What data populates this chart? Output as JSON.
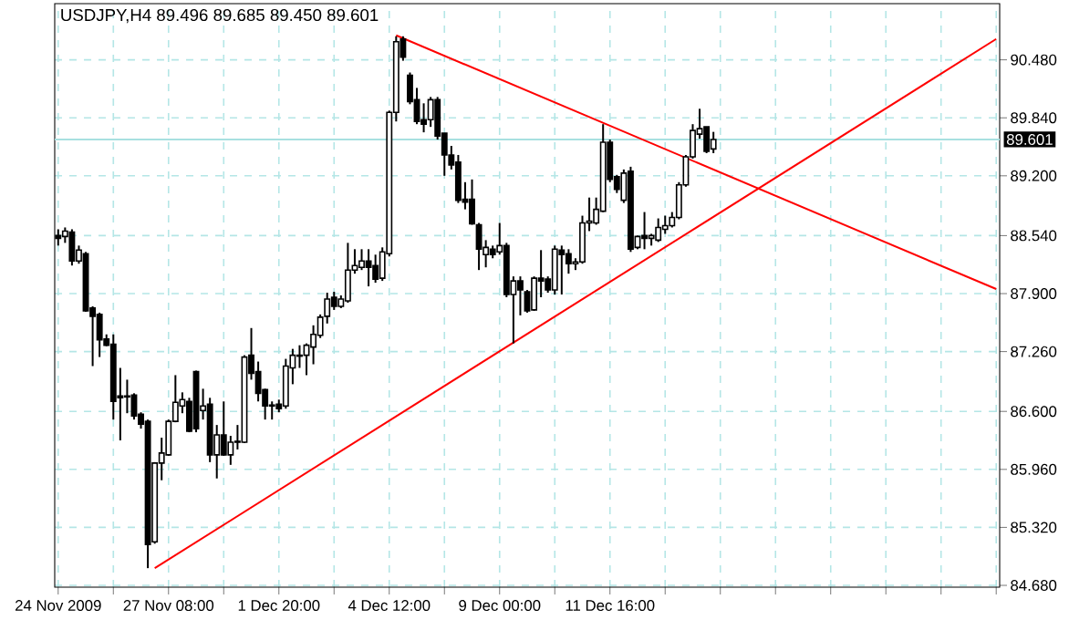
{
  "chart_data": {
    "type": "candlestick",
    "title": "USDJPY,H4 89.496 89.685 89.450 89.601",
    "categories": [
      "24 Nov 2009",
      null,
      null,
      null,
      null,
      null,
      null,
      null,
      null,
      null,
      null,
      null,
      null,
      null,
      null,
      null,
      "27 Nov 08:00",
      null,
      null,
      null,
      null,
      null,
      null,
      null,
      null,
      null,
      null,
      null,
      null,
      null,
      null,
      null,
      "1 Dec 20:00",
      null,
      null,
      null,
      null,
      null,
      null,
      null,
      null,
      null,
      null,
      null,
      null,
      null,
      null,
      null,
      "4 Dec 12:00",
      null,
      null,
      null,
      null,
      null,
      null,
      null,
      null,
      null,
      null,
      null,
      null,
      null,
      null,
      null,
      "9 Dec 00:00",
      null,
      null,
      null,
      null,
      null,
      null,
      null,
      null,
      null,
      null,
      null,
      null,
      null,
      null,
      null,
      "11 Dec 16:00",
      null,
      null,
      null,
      null,
      null,
      null,
      null,
      null,
      null,
      null,
      null,
      null,
      null,
      null,
      null,
      null,
      null,
      null,
      null,
      null,
      null,
      null,
      null,
      null,
      null,
      null,
      null,
      null,
      null,
      null,
      null,
      null,
      null,
      null,
      null,
      null,
      null,
      null,
      null,
      null,
      null,
      null,
      null,
      null,
      null,
      null,
      null,
      null,
      null,
      null,
      null,
      null,
      null,
      null,
      null,
      null
    ],
    "ohlc": [
      [
        88.54,
        88.61,
        88.43,
        88.51
      ],
      [
        88.53,
        88.63,
        88.46,
        88.59
      ],
      [
        88.58,
        88.61,
        88.21,
        88.26
      ],
      [
        88.26,
        88.43,
        88.23,
        88.38
      ],
      [
        88.34,
        88.36,
        87.7,
        87.71
      ],
      [
        87.74,
        87.76,
        87.1,
        87.65
      ],
      [
        87.67,
        87.69,
        87.2,
        87.39
      ],
      [
        87.4,
        87.45,
        87.32,
        87.33
      ],
      [
        87.34,
        87.45,
        86.51,
        86.71
      ],
      [
        86.77,
        87.08,
        86.28,
        86.75
      ],
      [
        86.77,
        86.95,
        86.58,
        86.76
      ],
      [
        86.78,
        86.8,
        86.51,
        86.55
      ],
      [
        86.57,
        86.59,
        86.41,
        86.46
      ],
      [
        86.49,
        86.51,
        84.87,
        85.13
      ],
      [
        85.16,
        86.04,
        85.14,
        86.03
      ],
      [
        86.03,
        86.31,
        85.84,
        86.14
      ],
      [
        86.12,
        86.51,
        86.11,
        86.49
      ],
      [
        86.49,
        87.0,
        86.48,
        86.7
      ],
      [
        86.66,
        86.81,
        86.58,
        86.73
      ],
      [
        86.71,
        86.75,
        86.37,
        86.38
      ],
      [
        87.04,
        87.05,
        86.37,
        86.41
      ],
      [
        86.61,
        86.85,
        86.51,
        86.66
      ],
      [
        86.68,
        86.75,
        86.04,
        86.12
      ],
      [
        86.12,
        86.45,
        85.86,
        86.34
      ],
      [
        86.34,
        86.71,
        86.11,
        86.12
      ],
      [
        86.12,
        86.33,
        86.01,
        86.26
      ],
      [
        86.26,
        86.45,
        86.18,
        86.27
      ],
      [
        86.26,
        87.22,
        86.25,
        87.2
      ],
      [
        87.22,
        87.52,
        86.95,
        87.02
      ],
      [
        87.04,
        87.15,
        86.71,
        86.8
      ],
      [
        86.84,
        86.85,
        86.51,
        86.66
      ],
      [
        86.66,
        86.71,
        86.51,
        86.67
      ],
      [
        86.68,
        86.73,
        86.59,
        86.63
      ],
      [
        86.66,
        87.18,
        86.63,
        87.1
      ],
      [
        87.08,
        87.29,
        86.9,
        87.22
      ],
      [
        87.21,
        87.33,
        87.08,
        87.22
      ],
      [
        87.22,
        87.35,
        87.0,
        87.33
      ],
      [
        87.31,
        87.55,
        87.12,
        87.45
      ],
      [
        87.44,
        87.67,
        87.41,
        87.64
      ],
      [
        87.65,
        87.91,
        87.57,
        87.84
      ],
      [
        87.86,
        87.92,
        87.72,
        87.76
      ],
      [
        87.76,
        87.88,
        87.74,
        87.84
      ],
      [
        87.82,
        88.46,
        87.8,
        88.16
      ],
      [
        88.16,
        88.39,
        88.12,
        88.21
      ],
      [
        88.19,
        88.39,
        88.16,
        88.26
      ],
      [
        88.26,
        88.39,
        87.98,
        88.19
      ],
      [
        88.21,
        88.33,
        88.02,
        88.06
      ],
      [
        88.07,
        88.41,
        88.04,
        88.36
      ],
      [
        88.34,
        89.92,
        88.31,
        89.9
      ],
      [
        89.9,
        90.74,
        89.8,
        90.68
      ],
      [
        90.71,
        90.74,
        90.47,
        90.51
      ],
      [
        90.31,
        90.34,
        89.99,
        90.02
      ],
      [
        90.04,
        90.17,
        89.77,
        89.8
      ],
      [
        89.82,
        90.0,
        89.68,
        89.77
      ],
      [
        89.82,
        90.07,
        89.74,
        90.04
      ],
      [
        90.04,
        90.07,
        89.6,
        89.64
      ],
      [
        89.67,
        89.67,
        89.2,
        89.43
      ],
      [
        89.43,
        89.53,
        89.27,
        89.32
      ],
      [
        89.35,
        89.43,
        88.9,
        88.93
      ],
      [
        88.94,
        89.13,
        88.83,
        88.91
      ],
      [
        88.94,
        89.16,
        88.66,
        88.67
      ],
      [
        88.66,
        88.68,
        88.16,
        88.39
      ],
      [
        88.33,
        88.49,
        88.19,
        88.41
      ],
      [
        88.39,
        88.43,
        88.29,
        88.33
      ],
      [
        88.36,
        88.68,
        88.33,
        88.43
      ],
      [
        88.43,
        88.46,
        87.86,
        87.89
      ],
      [
        87.89,
        88.09,
        87.35,
        88.04
      ],
      [
        88.04,
        88.09,
        87.66,
        87.94
      ],
      [
        87.92,
        87.94,
        87.69,
        87.71
      ],
      [
        87.72,
        88.09,
        87.71,
        88.07
      ],
      [
        88.07,
        88.38,
        87.86,
        88.04
      ],
      [
        88.06,
        88.09,
        87.91,
        87.94
      ],
      [
        87.94,
        88.43,
        87.89,
        88.39
      ],
      [
        88.38,
        88.43,
        87.89,
        88.33
      ],
      [
        88.34,
        88.39,
        88.12,
        88.23
      ],
      [
        88.23,
        88.29,
        88.16,
        88.25
      ],
      [
        88.25,
        88.76,
        88.23,
        88.68
      ],
      [
        88.68,
        88.96,
        88.59,
        88.7
      ],
      [
        88.68,
        88.96,
        88.66,
        88.83
      ],
      [
        88.81,
        89.77,
        88.8,
        89.57
      ],
      [
        89.57,
        89.6,
        89.13,
        89.16
      ],
      [
        89.19,
        89.21,
        89.01,
        89.05
      ],
      [
        88.93,
        89.27,
        88.9,
        89.23
      ],
      [
        89.25,
        89.3,
        88.36,
        88.39
      ],
      [
        88.41,
        88.54,
        88.39,
        88.53
      ],
      [
        88.54,
        88.8,
        88.39,
        88.51
      ],
      [
        88.51,
        88.56,
        88.43,
        88.54
      ],
      [
        88.49,
        88.73,
        88.47,
        88.63
      ],
      [
        88.61,
        88.76,
        88.56,
        88.65
      ],
      [
        88.65,
        88.8,
        88.63,
        88.74
      ],
      [
        88.74,
        89.13,
        88.72,
        89.1
      ],
      [
        89.1,
        89.43,
        89.08,
        89.41
      ],
      [
        89.41,
        89.77,
        89.39,
        89.7
      ],
      [
        89.66,
        89.94,
        89.61,
        89.72
      ],
      [
        89.74,
        89.74,
        89.45,
        89.47
      ],
      [
        89.496,
        89.685,
        89.45,
        89.601
      ],
      null,
      null,
      null,
      null,
      null,
      null,
      null,
      null,
      null,
      null,
      null,
      null,
      null,
      null,
      null,
      null,
      null,
      null,
      null,
      null,
      null,
      null,
      null,
      null,
      null,
      null,
      null,
      null,
      null,
      null,
      null,
      null,
      null,
      null,
      null,
      null,
      null,
      null,
      null,
      null,
      null
    ],
    "series": [
      {
        "type": "line",
        "color": "#ff0000",
        "values": [
          null,
          null,
          null,
          null,
          null,
          null,
          null,
          null,
          null,
          null,
          null,
          null,
          null,
          null,
          null,
          null,
          null,
          null,
          null,
          null,
          null,
          null,
          null,
          null,
          null,
          null,
          null,
          null,
          null,
          null,
          null,
          null,
          null,
          null,
          null,
          null,
          null,
          null,
          null,
          null,
          null,
          null,
          null,
          null,
          null,
          null,
          null,
          null,
          null,
          90.75,
          null,
          null,
          null,
          null,
          null,
          null,
          null,
          null,
          null,
          null,
          null,
          null,
          null,
          null,
          null,
          null,
          null,
          null,
          null,
          null,
          null,
          null,
          null,
          null,
          null,
          null,
          null,
          null,
          null,
          null,
          null,
          null,
          null,
          null,
          null,
          null,
          null,
          null,
          null,
          null,
          null,
          null,
          null,
          null,
          null,
          null,
          null,
          null,
          null,
          null,
          null,
          null,
          null,
          null,
          null,
          null,
          null,
          null,
          null,
          null,
          null,
          null,
          null,
          null,
          null,
          null,
          null,
          null,
          null,
          null,
          null,
          null,
          null,
          null,
          null,
          null,
          null,
          null,
          null,
          null,
          null,
          null,
          null,
          null,
          null,
          null,
          87.95
        ]
      },
      {
        "type": "line",
        "color": "#ff0000",
        "values": [
          null,
          null,
          null,
          null,
          null,
          null,
          null,
          null,
          null,
          null,
          null,
          null,
          null,
          null,
          84.87,
          null,
          null,
          null,
          null,
          null,
          null,
          null,
          null,
          null,
          null,
          null,
          null,
          null,
          null,
          null,
          null,
          null,
          null,
          null,
          null,
          null,
          null,
          null,
          null,
          null,
          null,
          null,
          null,
          null,
          null,
          null,
          null,
          null,
          null,
          null,
          null,
          null,
          null,
          null,
          null,
          null,
          null,
          null,
          null,
          null,
          null,
          null,
          null,
          null,
          null,
          null,
          null,
          null,
          null,
          null,
          null,
          null,
          null,
          null,
          null,
          null,
          null,
          null,
          null,
          null,
          null,
          null,
          null,
          null,
          null,
          null,
          null,
          null,
          null,
          null,
          null,
          null,
          null,
          null,
          null,
          null,
          null,
          null,
          null,
          null,
          null,
          null,
          null,
          null,
          null,
          null,
          null,
          null,
          null,
          null,
          null,
          null,
          null,
          null,
          null,
          null,
          null,
          null,
          null,
          null,
          null,
          null,
          null,
          null,
          null,
          null,
          null,
          null,
          null,
          null,
          null,
          null,
          null,
          null,
          null,
          null,
          90.71
        ]
      }
    ],
    "ylim": [
      84.66,
      91.1
    ],
    "yticks": [
      {
        "value": 84.68,
        "label": "84.680"
      },
      {
        "value": 85.32,
        "label": "85.320"
      },
      {
        "value": 85.96,
        "label": "85.960"
      },
      {
        "value": 86.6,
        "label": "86.600"
      },
      {
        "value": 87.26,
        "label": "87.260"
      },
      {
        "value": 87.9,
        "label": "87.900"
      },
      {
        "value": 88.54,
        "label": "88.540"
      },
      {
        "value": 89.2,
        "label": "89.200"
      },
      {
        "value": 89.84,
        "label": "89.840"
      },
      {
        "value": 90.48,
        "label": "90.480"
      }
    ],
    "ref_lines": [
      {
        "axis": "y",
        "value": 89.601,
        "label": "89.601",
        "color": "#a8e0e0"
      }
    ],
    "grid": true
  }
}
